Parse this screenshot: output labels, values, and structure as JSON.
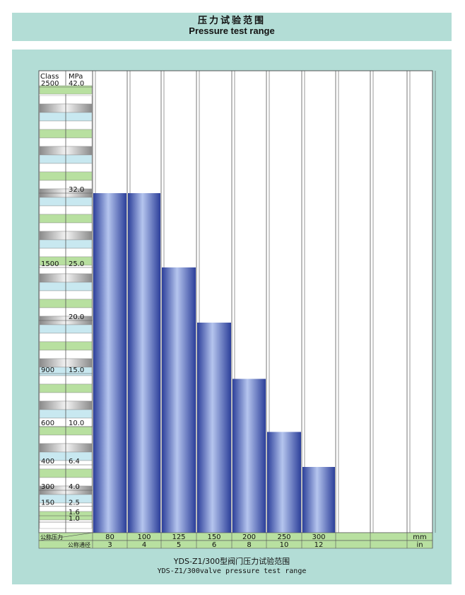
{
  "header": {
    "title_cn": "压力试验范围",
    "title_en": "Pressure test range"
  },
  "caption": {
    "cn": "YDS-Z1/300型阀门压力试验范围",
    "en": "YDS-Z1/300valve pressure test range"
  },
  "colors": {
    "background": "#b3ddd6",
    "bar_dark": "#2c3f9a",
    "bar_light": "#b5c5ee",
    "green_cell": "#b8e0a0",
    "blue_cell": "#c8e8f0",
    "grid": "#555555"
  },
  "chart_data": {
    "type": "bar",
    "title": "压力试验范围 Pressure test range",
    "ylabel": "MPa",
    "xlabel": "公称通径",
    "ylim": [
      0,
      42.0
    ],
    "y_axis_headers": [
      "Class",
      "MPa"
    ],
    "y_axis_labels": [
      {
        "class": "2500",
        "mpa": "42.0",
        "value": 42.0
      },
      {
        "class": "",
        "mpa": "32.0",
        "value": 32.0
      },
      {
        "class": "1500",
        "mpa": "25.0",
        "value": 25.0
      },
      {
        "class": "",
        "mpa": "20.0",
        "value": 20.0
      },
      {
        "class": "900",
        "mpa": "15.0",
        "value": 15.0
      },
      {
        "class": "600",
        "mpa": "10.0",
        "value": 10.0
      },
      {
        "class": "400",
        "mpa": "6.4",
        "value": 6.4
      },
      {
        "class": "300",
        "mpa": "4.0",
        "value": 4.0
      },
      {
        "class": "150",
        "mpa": "2.5",
        "value": 2.5
      },
      {
        "class": "",
        "mpa": "1.6",
        "value": 1.6
      },
      {
        "class": "",
        "mpa": "1.0",
        "value": 1.0
      }
    ],
    "row_labels": [
      "公称压力",
      "公称通径"
    ],
    "categories_mm": [
      "80",
      "100",
      "125",
      "150",
      "200",
      "250",
      "300",
      "",
      "",
      "",
      ""
    ],
    "categories_in": [
      "3",
      "4",
      "5",
      "6",
      "8",
      "10",
      "12",
      "",
      "",
      "",
      ""
    ],
    "unit_mm": "mm",
    "unit_in": "in",
    "values": [
      32.0,
      32.0,
      25.0,
      19.8,
      14.5,
      9.5,
      6.2
    ]
  }
}
